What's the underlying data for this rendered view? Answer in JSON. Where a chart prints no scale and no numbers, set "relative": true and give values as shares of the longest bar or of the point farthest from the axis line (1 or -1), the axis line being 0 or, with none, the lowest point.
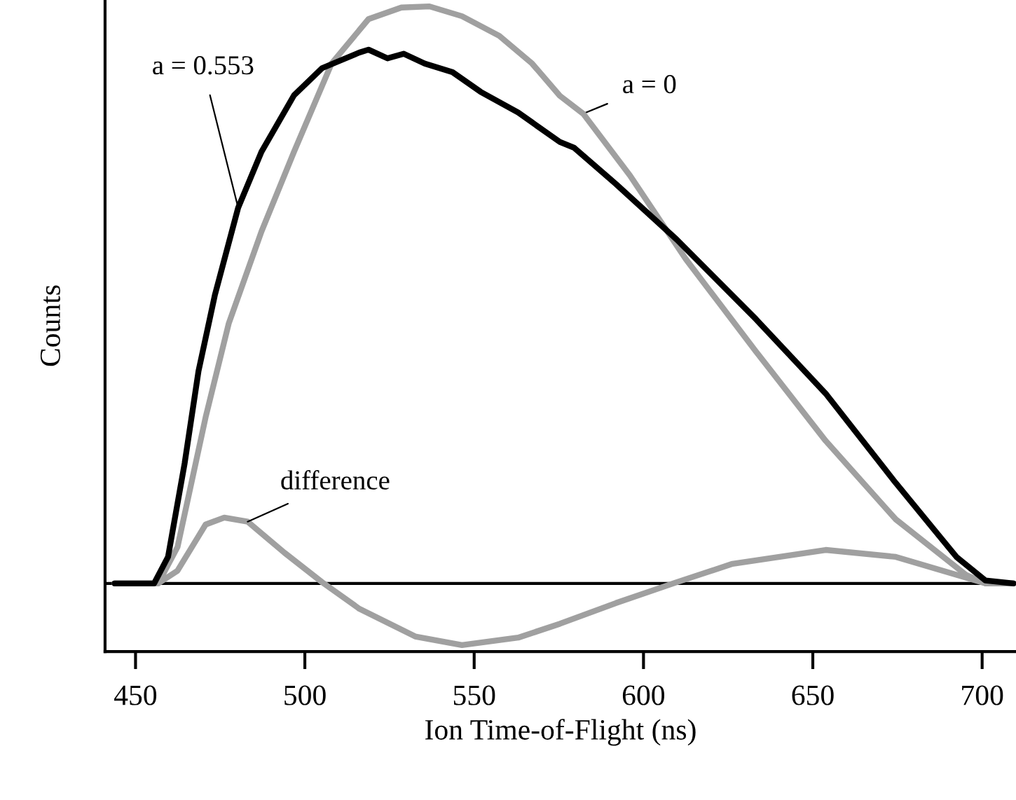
{
  "chart_data": {
    "type": "line",
    "relative": true,
    "xlabel": "Ion Time-of-Flight (ns)",
    "ylabel": "Counts",
    "xlim": [
      441,
      710
    ],
    "xticks": [
      450,
      500,
      550,
      600,
      650,
      700
    ],
    "grid": false,
    "legend": false,
    "marker": "none",
    "line_style": "solid",
    "ref_lines": [
      {
        "axis": "y",
        "value": 0,
        "color": "#000000"
      }
    ],
    "series": [
      {
        "name": "a = 0.553",
        "color": "#000000",
        "x": [
          443.8,
          455.5,
          459.6,
          464.5,
          468.6,
          473.4,
          480.3,
          487.2,
          496.8,
          505.1,
          516.1,
          518.8,
          524.4,
          529.2,
          535.4,
          543.6,
          551.9,
          563.0,
          575.3,
          579.5,
          591.9,
          609.8,
          633.2,
          653.8,
          674.5,
          692.4,
          701.0,
          709.3
        ],
        "values": [
          0,
          0,
          0.046,
          0.208,
          0.368,
          0.499,
          0.651,
          0.748,
          0.846,
          0.893,
          0.92,
          0.925,
          0.91,
          0.918,
          0.901,
          0.886,
          0.852,
          0.816,
          0.765,
          0.755,
          0.692,
          0.596,
          0.458,
          0.329,
          0.174,
          0.046,
          0.005,
          0
        ]
      },
      {
        "name": "a = 0",
        "color": "#a0a0a0",
        "x": [
          443.8,
          456.7,
          462.4,
          470.7,
          477.5,
          487.2,
          496.8,
          507.9,
          518.8,
          528.5,
          536.8,
          546.4,
          557.4,
          567.1,
          575.3,
          582.2,
          596.0,
          612.5,
          633.2,
          653.8,
          674.5,
          695.2,
          701.0,
          709.3
        ],
        "values": [
          0,
          0,
          0.063,
          0.288,
          0.45,
          0.61,
          0.748,
          0.901,
          0.978,
          0.998,
          1.0,
          0.983,
          0.949,
          0.901,
          0.845,
          0.814,
          0.707,
          0.562,
          0.402,
          0.247,
          0.111,
          0.015,
          0,
          0
        ]
      },
      {
        "name": "difference",
        "color": "#a0a0a0",
        "x": [
          443.8,
          456.7,
          462.4,
          470.7,
          476.2,
          483.1,
          494.0,
          505.1,
          516.1,
          532.6,
          546.4,
          563.0,
          575.3,
          591.9,
          609.8,
          626.3,
          653.8,
          674.5,
          692.4,
          701.0,
          709.3
        ],
        "values": [
          0,
          0,
          0.022,
          0.102,
          0.114,
          0.107,
          0.053,
          0.002,
          -0.044,
          -0.092,
          -0.107,
          -0.094,
          -0.07,
          -0.034,
          0.002,
          0.034,
          0.058,
          0.046,
          0.015,
          0,
          0
        ]
      }
    ]
  }
}
